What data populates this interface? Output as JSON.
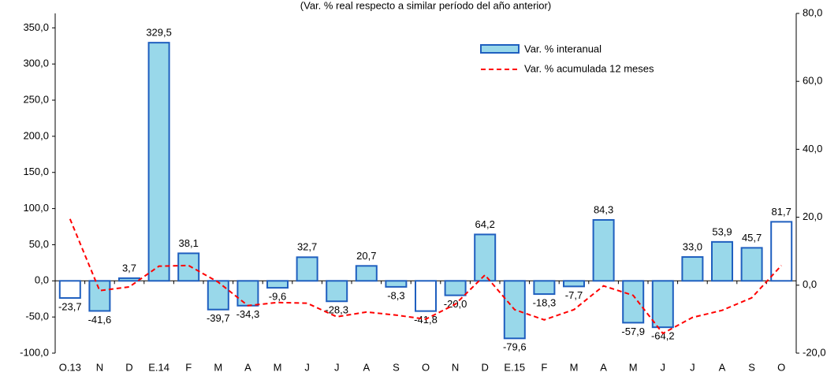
{
  "chart_data": {
    "type": "bar",
    "subtitle": "(Var. % real respecto a similar período del año anterior)",
    "categories": [
      "O.13",
      "N",
      "D",
      "E.14",
      "F",
      "M",
      "A",
      "M",
      "J",
      "J",
      "A",
      "S",
      "O",
      "N",
      "D",
      "E.15",
      "F",
      "M",
      "A",
      "M",
      "J",
      "J",
      "A",
      "S",
      "O"
    ],
    "series": [
      {
        "name": "Var. % interanual",
        "color": "#99d8ea",
        "edge_color": "#1f5fbf",
        "bar_fills": [
          "#ffffff",
          "#99d8ea",
          "#99d8ea",
          "#99d8ea",
          "#99d8ea",
          "#99d8ea",
          "#99d8ea",
          "#99d8ea",
          "#99d8ea",
          "#99d8ea",
          "#99d8ea",
          "#99d8ea",
          "#ffffff",
          "#99d8ea",
          "#99d8ea",
          "#99d8ea",
          "#99d8ea",
          "#99d8ea",
          "#99d8ea",
          "#99d8ea",
          "#99d8ea",
          "#99d8ea",
          "#99d8ea",
          "#99d8ea",
          "#ffffff"
        ],
        "values": [
          -23.7,
          -41.6,
          3.7,
          329.5,
          38.1,
          -39.7,
          -34.3,
          -9.6,
          32.7,
          -28.3,
          20.7,
          -8.3,
          -41.8,
          -20.0,
          64.2,
          -79.6,
          -18.3,
          -7.7,
          84.3,
          -57.9,
          -64.2,
          33.0,
          53.9,
          45.7,
          81.7
        ],
        "value_labels": [
          "-23,7",
          "-41,6",
          "3,7",
          "329,5",
          "38,1",
          "-39,7",
          "-34,3",
          "-9,6",
          "32,7",
          "-28,3",
          "20,7",
          "-8,3",
          "-41,8",
          "-20,0",
          "64,2",
          "-79,6",
          "-18,3",
          "-7,7",
          "84,3",
          "-57,9",
          "-64,2",
          "33,0",
          "53,9",
          "45,7",
          "81,7"
        ]
      },
      {
        "name": "Var. % acumulada 12 meses",
        "color": "#ff0000",
        "axis": "y2",
        "dashed": true,
        "values": [
          19.5,
          -1.6,
          -0.5,
          5.6,
          5.8,
          0.9,
          -6.0,
          -5.1,
          -5.3,
          -9.3,
          -7.9,
          -8.8,
          -10.0,
          -5.6,
          3.0,
          -7.2,
          -10.2,
          -7.2,
          -0.2,
          -3.0,
          -14.2,
          -9.5,
          -7.4,
          -3.7,
          5.8
        ]
      }
    ],
    "ylim": [
      -100,
      370
    ],
    "yticks": [
      {
        "value": -100,
        "label": "-100,0"
      },
      {
        "value": -50,
        "label": "-50,0"
      },
      {
        "value": 0,
        "label": "0,0"
      },
      {
        "value": 50,
        "label": "50,0"
      },
      {
        "value": 100,
        "label": "100,0"
      },
      {
        "value": 150,
        "label": "150,0"
      },
      {
        "value": 200,
        "label": "200,0"
      },
      {
        "value": 250,
        "label": "250,0"
      },
      {
        "value": 300,
        "label": "300,0"
      },
      {
        "value": 350,
        "label": "350,0"
      }
    ],
    "y2lim": [
      -20,
      80
    ],
    "y2ticks": [
      {
        "value": -20,
        "label": "-20,0"
      },
      {
        "value": 0,
        "label": "0,0"
      },
      {
        "value": 20,
        "label": "20,0"
      },
      {
        "value": 40,
        "label": "40,0"
      },
      {
        "value": 60,
        "label": "60,0"
      },
      {
        "value": 80,
        "label": "80,0"
      }
    ],
    "grid": false
  }
}
